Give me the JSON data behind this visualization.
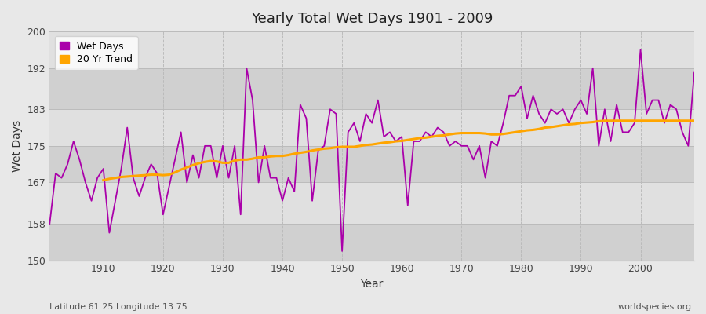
{
  "title": "Yearly Total Wet Days 1901 - 2009",
  "xlabel": "Year",
  "ylabel": "Wet Days",
  "footnote_left": "Latitude 61.25 Longitude 13.75",
  "footnote_right": "worldspecies.org",
  "ylim": [
    150,
    200
  ],
  "xlim": [
    1901,
    2009
  ],
  "yticks": [
    150,
    158,
    167,
    175,
    183,
    192,
    200
  ],
  "xticks": [
    1910,
    1920,
    1930,
    1940,
    1950,
    1960,
    1970,
    1980,
    1990,
    2000
  ],
  "wet_days_color": "#AA00AA",
  "trend_color": "#FFA500",
  "bg_color": "#E8E8E8",
  "band_color_light": "#E0E0E0",
  "band_color_dark": "#D0D0D0",
  "legend_entries": [
    "Wet Days",
    "20 Yr Trend"
  ],
  "years": [
    1901,
    1902,
    1903,
    1904,
    1905,
    1906,
    1907,
    1908,
    1909,
    1910,
    1911,
    1912,
    1913,
    1914,
    1915,
    1916,
    1917,
    1918,
    1919,
    1920,
    1921,
    1922,
    1923,
    1924,
    1925,
    1926,
    1927,
    1928,
    1929,
    1930,
    1931,
    1932,
    1933,
    1934,
    1935,
    1936,
    1937,
    1938,
    1939,
    1940,
    1941,
    1942,
    1943,
    1944,
    1945,
    1946,
    1947,
    1948,
    1949,
    1950,
    1951,
    1952,
    1953,
    1954,
    1955,
    1956,
    1957,
    1958,
    1959,
    1960,
    1961,
    1962,
    1963,
    1964,
    1965,
    1966,
    1967,
    1968,
    1969,
    1970,
    1971,
    1972,
    1973,
    1974,
    1975,
    1976,
    1977,
    1978,
    1979,
    1980,
    1981,
    1982,
    1983,
    1984,
    1985,
    1986,
    1987,
    1988,
    1989,
    1990,
    1991,
    1992,
    1993,
    1994,
    1995,
    1996,
    1997,
    1998,
    1999,
    2000,
    2001,
    2002,
    2003,
    2004,
    2005,
    2006,
    2007,
    2008,
    2009
  ],
  "wet_days": [
    158,
    169,
    168,
    171,
    176,
    172,
    167,
    163,
    168,
    170,
    156,
    163,
    170,
    179,
    168,
    164,
    168,
    171,
    169,
    160,
    166,
    172,
    178,
    167,
    173,
    168,
    175,
    175,
    168,
    175,
    168,
    175,
    160,
    192,
    185,
    167,
    175,
    168,
    168,
    163,
    168,
    165,
    184,
    181,
    163,
    174,
    175,
    183,
    182,
    152,
    178,
    180,
    176,
    182,
    180,
    185,
    177,
    178,
    176,
    177,
    162,
    176,
    176,
    178,
    177,
    179,
    178,
    175,
    176,
    175,
    175,
    172,
    175,
    168,
    176,
    175,
    180,
    186,
    186,
    188,
    181,
    186,
    182,
    180,
    183,
    182,
    183,
    180,
    183,
    185,
    182,
    192,
    175,
    183,
    176,
    184,
    178,
    178,
    180,
    196,
    182,
    185,
    185,
    180,
    184,
    183,
    178,
    175,
    191
  ],
  "trend_years": [
    1910,
    1911,
    1912,
    1913,
    1914,
    1915,
    1916,
    1917,
    1918,
    1919,
    1920,
    1921,
    1922,
    1923,
    1924,
    1925,
    1926,
    1927,
    1928,
    1929,
    1930,
    1931,
    1932,
    1933,
    1934,
    1935,
    1936,
    1937,
    1938,
    1939,
    1940,
    1941,
    1942,
    1943,
    1944,
    1945,
    1946,
    1947,
    1948,
    1949,
    1950,
    1951,
    1952,
    1953,
    1954,
    1955,
    1956,
    1957,
    1958,
    1959,
    1960,
    1961,
    1962,
    1963,
    1964,
    1965,
    1966,
    1967,
    1968,
    1969,
    1970,
    1971,
    1972,
    1973,
    1974,
    1975,
    1976,
    1977,
    1978,
    1979,
    1980,
    1981,
    1982,
    1983,
    1984,
    1985,
    1986,
    1987,
    1988,
    1989,
    1990,
    1991,
    1992,
    1993,
    1994,
    1995,
    1996,
    1997,
    1998,
    1999,
    2000,
    2001,
    2002,
    2003,
    2004,
    2005,
    2006,
    2007,
    2008,
    2009
  ],
  "trend_values": [
    167.5,
    167.8,
    168.0,
    168.2,
    168.3,
    168.4,
    168.5,
    168.6,
    168.7,
    168.7,
    168.6,
    168.7,
    169.2,
    169.8,
    170.3,
    170.8,
    171.2,
    171.5,
    171.7,
    171.6,
    171.3,
    171.3,
    171.8,
    172.0,
    172.0,
    172.2,
    172.5,
    172.5,
    172.7,
    172.8,
    172.8,
    173.0,
    173.3,
    173.5,
    173.7,
    174.0,
    174.2,
    174.4,
    174.5,
    174.7,
    174.8,
    174.8,
    174.8,
    175.0,
    175.2,
    175.3,
    175.5,
    175.7,
    175.8,
    176.0,
    176.1,
    176.3,
    176.5,
    176.7,
    176.8,
    177.0,
    177.2,
    177.3,
    177.5,
    177.7,
    177.8,
    177.8,
    177.8,
    177.8,
    177.7,
    177.5,
    177.5,
    177.6,
    177.8,
    178.0,
    178.2,
    178.4,
    178.5,
    178.7,
    179.0,
    179.1,
    179.3,
    179.5,
    179.7,
    179.8,
    180.0,
    180.1,
    180.2,
    180.4,
    180.5,
    180.5,
    180.5,
    180.5,
    180.5,
    180.5,
    180.5,
    180.5,
    180.5,
    180.5,
    180.5,
    180.5,
    180.5,
    180.5,
    180.5,
    180.5
  ]
}
